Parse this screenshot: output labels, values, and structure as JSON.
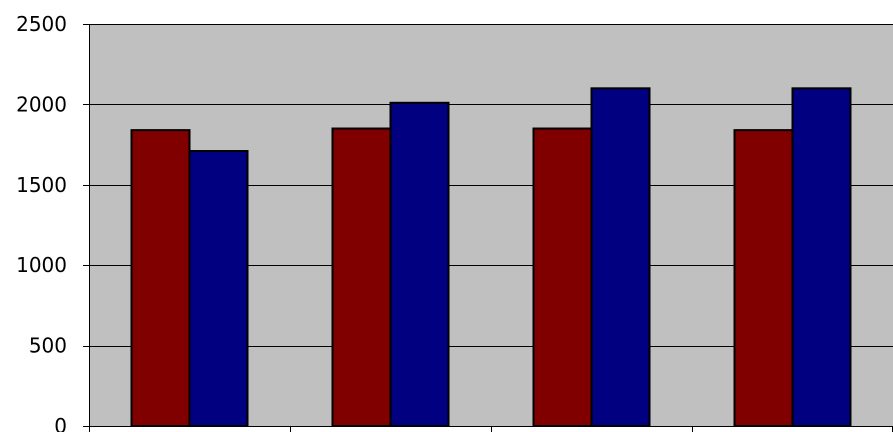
{
  "chart_data": {
    "type": "bar",
    "title": "",
    "xlabel": "",
    "ylabel": "",
    "categories": [
      "",
      "",
      "",
      ""
    ],
    "series": [
      {
        "values": [
          1840,
          1850,
          1850,
          1840
        ]
      },
      {
        "values": [
          1710,
          2010,
          2100,
          2100
        ]
      }
    ],
    "ylim": [
      0,
      2500
    ],
    "yticks": [
      "0",
      "500",
      "1000",
      "1500",
      "2000",
      "2500"
    ],
    "grid": "horizontal",
    "legend": "none",
    "colors": {
      "plot_background": "#C0C0C0",
      "series": [
        "#800000",
        "#000080"
      ],
      "bar_outline": "#000000",
      "axis": "#000000"
    }
  }
}
